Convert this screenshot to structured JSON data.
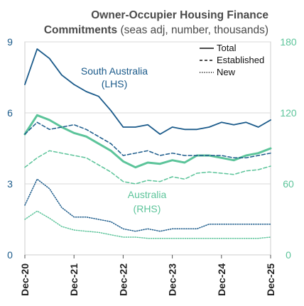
{
  "chart_data": {
    "type": "line",
    "title": "Owner-Occupier Housing Finance",
    "title_bold_part": "Commitments",
    "title_suffix": " (seas adj, number, thousands)",
    "x_ticks": [
      "Dec-20",
      "Dec-21",
      "Dec-22",
      "Dec-23",
      "Dec-24",
      "Dec-25"
    ],
    "x_start": "Dec-20",
    "x_end": "Dec-25",
    "left_axis": {
      "ticks": [
        0,
        3,
        6,
        9
      ],
      "ylim": [
        0,
        9
      ],
      "color": "#1a5a8a"
    },
    "right_axis": {
      "ticks": [
        0,
        60,
        120,
        180
      ],
      "ylim": [
        0,
        180
      ],
      "color": "#5cc49a"
    },
    "grid": true,
    "legend": {
      "placement": "top-right",
      "entries": [
        {
          "label": "Total",
          "style": "solid"
        },
        {
          "label": "Established",
          "style": "dashed"
        },
        {
          "label": "New",
          "style": "dotted"
        }
      ]
    },
    "annotations": {
      "sa_line1": "South Australia",
      "sa_line2": "(LHS)",
      "aus_line1": "Australia",
      "aus_line2": "(RHS)"
    },
    "colors": {
      "south_australia": "#1a5a8a",
      "australia": "#5cc49a"
    },
    "x_quarters": [
      "Dec-20",
      "Mar-21",
      "Jun-21",
      "Sep-21",
      "Dec-21",
      "Mar-22",
      "Jun-22",
      "Sep-22",
      "Dec-22",
      "Mar-23",
      "Jun-23",
      "Sep-23",
      "Dec-23",
      "Mar-24",
      "Jun-24",
      "Sep-24",
      "Dec-24",
      "Mar-25",
      "Jun-25",
      "Sep-25",
      "Dec-25"
    ],
    "series": [
      {
        "region": "South Australia",
        "axis": "left",
        "style": "solid",
        "values": [
          7.2,
          8.7,
          8.3,
          7.6,
          7.2,
          6.9,
          6.7,
          6.1,
          5.4,
          5.4,
          5.5,
          5.1,
          5.4,
          5.3,
          5.3,
          5.4,
          5.6,
          5.5,
          5.6,
          5.4,
          5.7
        ]
      },
      {
        "region": "South Australia",
        "axis": "left",
        "style": "dashed",
        "values": [
          5.1,
          5.6,
          5.3,
          5.4,
          5.5,
          5.3,
          5.0,
          4.7,
          4.2,
          4.3,
          4.4,
          4.2,
          4.3,
          4.2,
          4.2,
          4.2,
          4.2,
          4.1,
          4.1,
          4.2,
          4.3
        ]
      },
      {
        "region": "South Australia",
        "axis": "left",
        "style": "dotted",
        "values": [
          2.1,
          3.2,
          2.8,
          2.0,
          1.6,
          1.6,
          1.5,
          1.4,
          1.1,
          1.0,
          1.1,
          1.0,
          1.1,
          1.1,
          1.1,
          1.3,
          1.3,
          1.3,
          1.3,
          1.3,
          1.3
        ]
      },
      {
        "region": "Australia",
        "axis": "right",
        "style": "solid",
        "values": [
          102,
          118,
          114,
          108,
          103,
          100,
          94,
          88,
          79,
          74,
          78,
          77,
          80,
          78,
          84,
          84,
          82,
          80,
          84,
          86,
          90
        ]
      },
      {
        "region": "Australia",
        "axis": "right",
        "style": "dashed",
        "values": [
          74,
          82,
          88,
          86,
          84,
          82,
          76,
          70,
          62,
          60,
          63,
          62,
          66,
          64,
          69,
          70,
          69,
          68,
          71,
          72,
          75
        ]
      },
      {
        "region": "Australia",
        "axis": "right",
        "style": "dotted",
        "values": [
          30,
          37,
          31,
          24,
          21,
          20,
          19,
          17,
          15,
          15,
          14,
          14,
          14,
          14,
          14,
          14,
          14,
          14,
          14,
          14,
          15
        ]
      }
    ]
  }
}
